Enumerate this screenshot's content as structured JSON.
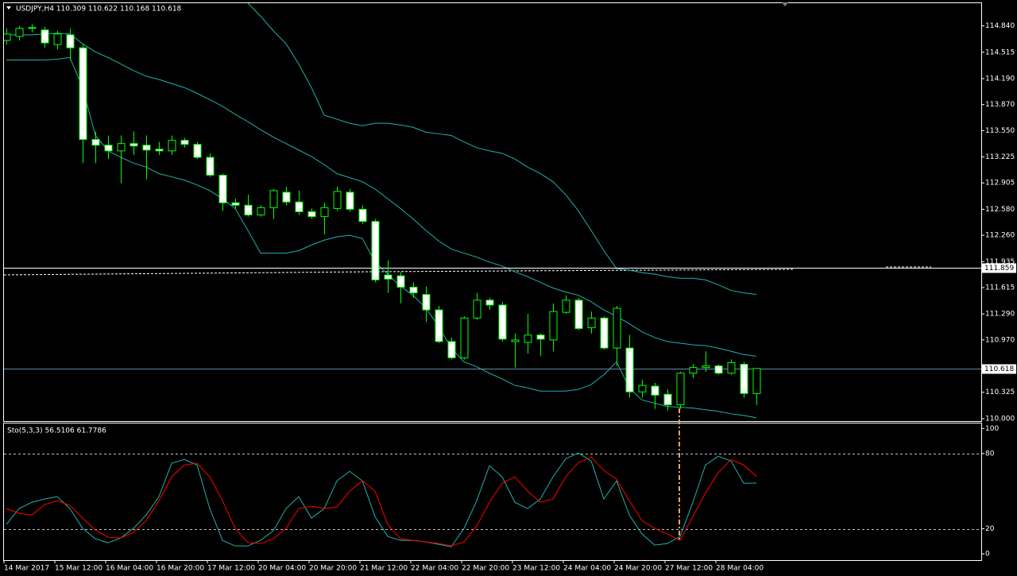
{
  "chart_data": [
    {
      "type": "candlestick",
      "title": "USDJPY,H4  110.309 110.622 110.168 110.618",
      "categories": [
        "14 Mar 2017",
        null,
        null,
        null,
        "15 Mar 12:00",
        null,
        null,
        null,
        "16 Mar 04:00",
        null,
        null,
        null,
        "16 Mar 20:00",
        null,
        null,
        null,
        "17 Mar 12:00",
        null,
        null,
        null,
        "20 Mar 04:00",
        null,
        null,
        null,
        "20 Mar 20:00",
        null,
        null,
        null,
        "21 Mar 12:00",
        null,
        null,
        null,
        "22 Mar 04:00",
        null,
        null,
        null,
        "22 Mar 20:00",
        null,
        null,
        null,
        "23 Mar 12:00",
        null,
        null,
        null,
        "24 Mar 04:00",
        null,
        null,
        null,
        "24 Mar 20:00",
        null,
        null,
        null,
        "27 Mar 12:00",
        null,
        null,
        null,
        "28 Mar 04:00",
        null,
        null,
        null
      ],
      "open": [
        114.66,
        114.71,
        114.81,
        114.79,
        114.61,
        114.73,
        114.57,
        113.44,
        113.37,
        113.3,
        113.39,
        113.37,
        113.32,
        113.3,
        113.43,
        113.38,
        113.22,
        113.0,
        112.66,
        112.63,
        112.51,
        112.6,
        112.79,
        112.67,
        112.55,
        112.49,
        112.59,
        112.79,
        112.58,
        112.43,
        111.77,
        111.76,
        111.62,
        111.53,
        111.34,
        110.95,
        110.75,
        111.24,
        111.46,
        111.4,
        110.95,
        110.94,
        111.03,
        110.97,
        111.31,
        111.46,
        111.12,
        111.24,
        110.87,
        110.87,
        110.33,
        110.4,
        110.3,
        110.17,
        110.56,
        110.63,
        110.65,
        110.56,
        110.67,
        110.309
      ],
      "high": [
        114.81,
        114.84,
        114.86,
        114.83,
        114.78,
        114.81,
        114.61,
        113.54,
        113.49,
        113.49,
        113.54,
        113.49,
        113.41,
        113.49,
        113.46,
        113.41,
        113.27,
        113.02,
        112.71,
        112.76,
        112.63,
        112.83,
        112.86,
        112.81,
        112.59,
        112.66,
        112.86,
        112.83,
        112.63,
        112.46,
        111.95,
        111.81,
        111.68,
        111.63,
        111.39,
        111.0,
        111.26,
        111.55,
        111.49,
        111.44,
        111.05,
        111.29,
        111.05,
        111.42,
        111.52,
        111.49,
        111.32,
        111.26,
        111.39,
        111.03,
        110.48,
        110.44,
        110.36,
        110.58,
        110.67,
        110.83,
        110.67,
        110.73,
        110.7,
        110.622
      ],
      "low": [
        114.61,
        114.66,
        114.76,
        114.57,
        114.55,
        114.42,
        113.15,
        113.15,
        113.2,
        112.9,
        113.25,
        112.95,
        113.25,
        113.25,
        113.34,
        113.2,
        112.98,
        112.56,
        112.59,
        112.49,
        112.49,
        112.46,
        112.63,
        112.51,
        112.46,
        112.27,
        112.56,
        112.55,
        112.4,
        111.68,
        111.55,
        111.42,
        111.49,
        111.19,
        110.93,
        110.73,
        110.73,
        111.22,
        111.34,
        110.95,
        110.63,
        110.8,
        110.77,
        110.83,
        111.29,
        111.09,
        111.05,
        110.85,
        110.65,
        110.26,
        110.26,
        110.12,
        110.1,
        110.12,
        110.5,
        110.58,
        110.54,
        110.54,
        110.26,
        110.168
      ],
      "close": [
        114.74,
        114.81,
        114.82,
        114.63,
        114.74,
        114.57,
        113.44,
        113.37,
        113.3,
        113.39,
        113.36,
        113.31,
        113.3,
        113.43,
        113.38,
        113.22,
        113.0,
        112.66,
        112.63,
        112.51,
        112.6,
        112.81,
        112.67,
        112.55,
        112.49,
        112.6,
        112.8,
        112.58,
        112.43,
        111.71,
        111.72,
        111.62,
        111.55,
        111.34,
        110.95,
        110.75,
        111.24,
        111.46,
        111.4,
        110.98,
        110.97,
        111.03,
        110.98,
        111.32,
        111.46,
        111.11,
        111.24,
        110.87,
        111.36,
        110.33,
        110.41,
        110.29,
        110.17,
        110.56,
        110.63,
        110.65,
        110.56,
        110.69,
        110.31,
        110.618
      ],
      "up_color": "#000000",
      "down_color": "#ffffff",
      "wick_color": "#00ff00",
      "series": [
        {
          "color": "#20b2aa",
          "values": [
            null,
            null,
            null,
            null,
            null,
            null,
            null,
            null,
            null,
            null,
            null,
            null,
            null,
            null,
            null,
            null,
            null,
            null,
            null,
            115.12,
            114.96,
            114.78,
            114.62,
            114.37,
            114.08,
            113.74,
            113.69,
            113.64,
            113.61,
            113.64,
            113.64,
            113.62,
            113.59,
            113.53,
            113.51,
            113.49,
            113.41,
            113.34,
            113.3,
            113.27,
            113.2,
            113.1,
            113.02,
            112.92,
            112.76,
            112.56,
            112.32,
            112.07,
            111.85,
            111.83,
            111.8,
            111.78,
            111.75,
            111.73,
            111.73,
            111.71,
            111.65,
            111.58,
            111.55,
            111.53
          ]
        },
        {
          "color": "#20b2aa",
          "values": [
            114.73,
            114.73,
            114.73,
            114.74,
            114.75,
            114.74,
            114.62,
            114.52,
            114.45,
            114.37,
            114.29,
            114.22,
            114.18,
            114.13,
            114.08,
            114.01,
            113.93,
            113.85,
            113.75,
            113.66,
            113.56,
            113.47,
            113.39,
            113.31,
            113.23,
            113.13,
            113.02,
            112.97,
            112.92,
            112.83,
            112.71,
            112.59,
            112.46,
            112.32,
            112.19,
            112.09,
            112.04,
            111.99,
            111.93,
            111.88,
            111.81,
            111.75,
            111.68,
            111.61,
            111.56,
            111.52,
            111.44,
            111.34,
            111.26,
            111.17,
            111.07,
            111.0,
            110.95,
            110.93,
            110.91,
            110.9,
            110.87,
            110.83,
            110.79,
            110.77
          ]
        },
        {
          "color": "#20b2aa",
          "values": [
            114.42,
            114.42,
            114.42,
            114.42,
            114.43,
            114.45,
            114.08,
            113.49,
            113.3,
            113.22,
            113.15,
            113.1,
            113.02,
            112.98,
            112.94,
            112.88,
            112.81,
            112.71,
            112.59,
            112.32,
            112.04,
            112.04,
            112.04,
            112.07,
            112.14,
            112.2,
            112.24,
            112.26,
            112.22,
            111.93,
            111.78,
            111.63,
            111.52,
            111.36,
            111.14,
            110.87,
            110.7,
            110.64,
            110.56,
            110.49,
            110.41,
            110.38,
            110.34,
            110.34,
            110.34,
            110.36,
            110.42,
            110.54,
            110.7,
            110.38,
            110.23,
            110.19,
            110.15,
            110.14,
            110.13,
            110.11,
            110.09,
            110.06,
            110.04,
            110.01
          ]
        }
      ],
      "price_lines": [
        {
          "value": 111.859,
          "color": "#ffffff"
        },
        {
          "value": 110.618,
          "color": "#5f8fa8"
        }
      ],
      "ylim": [
        109.97,
        115.12
      ],
      "yticks": [
        {
          "value": 114.84,
          "label": "114.840"
        },
        114.515,
        {
          "value": 114.19,
          "label": "114.190"
        },
        {
          "value": 113.87,
          "label": "113.870"
        },
        {
          "value": 113.55,
          "label": "113.550"
        },
        113.225,
        112.905,
        {
          "value": 112.58,
          "label": "112.580"
        },
        {
          "value": 112.26,
          "label": "112.260"
        },
        111.935,
        111.615,
        {
          "value": 111.29,
          "label": "111.290"
        },
        {
          "value": 110.97,
          "label": "110.970"
        },
        110.325,
        {
          "value": 110,
          "label": "110.000"
        }
      ]
    },
    {
      "type": "line",
      "title": "Sto(5,3,3) 56.5106 61.7786",
      "series": [
        {
          "color": "#20b2aa",
          "values": [
            23.4,
            36.1,
            41.1,
            43.7,
            45.6,
            36.1,
            20.3,
            12.0,
            8.9,
            12.7,
            20.3,
            31.0,
            45.6,
            72.2,
            75.3,
            70.9,
            36.1,
            10.8,
            6.3,
            6.3,
            10.8,
            18.4,
            36.1,
            45.6,
            28.5,
            36.1,
            58.2,
            65.8,
            58.2,
            29.7,
            13.9,
            10.8,
            10.8,
            9.5,
            7.6,
            5.7,
            20.3,
            42.4,
            70.3,
            61.4,
            41.1,
            36.1,
            43.7,
            61.4,
            75.9,
            80.4,
            74.1,
            43.7,
            58.2,
            31.0,
            15.8,
            7.0,
            8.2,
            13.9,
            41.1,
            70.9,
            77.8,
            74.1,
            56.3,
            56.5106
          ]
        },
        {
          "color": "#ff0000",
          "values": [
            36.1,
            32.3,
            31.0,
            39.2,
            42.4,
            38.6,
            28.5,
            19.0,
            13.3,
            12.7,
            17.1,
            26.6,
            42.4,
            61.4,
            70.9,
            72.2,
            61.4,
            42.4,
            20.3,
            8.9,
            8.2,
            12.0,
            20.3,
            36.1,
            38.0,
            36.1,
            37.3,
            50.0,
            58.2,
            50.0,
            23.4,
            12.0,
            10.8,
            9.5,
            8.2,
            6.3,
            9.5,
            22.2,
            41.1,
            56.3,
            61.4,
            50.0,
            41.1,
            43.7,
            61.4,
            72.8,
            77.2,
            66.5,
            59.5,
            42.4,
            26.6,
            20.3,
            15.8,
            10.8,
            29.7,
            48.7,
            64.6,
            75.3,
            70.9,
            61.7786
          ]
        }
      ],
      "levels": [
        80,
        20
      ],
      "ylim": [
        -5,
        104
      ],
      "yticks": [
        100,
        80,
        20,
        0
      ]
    }
  ]
}
